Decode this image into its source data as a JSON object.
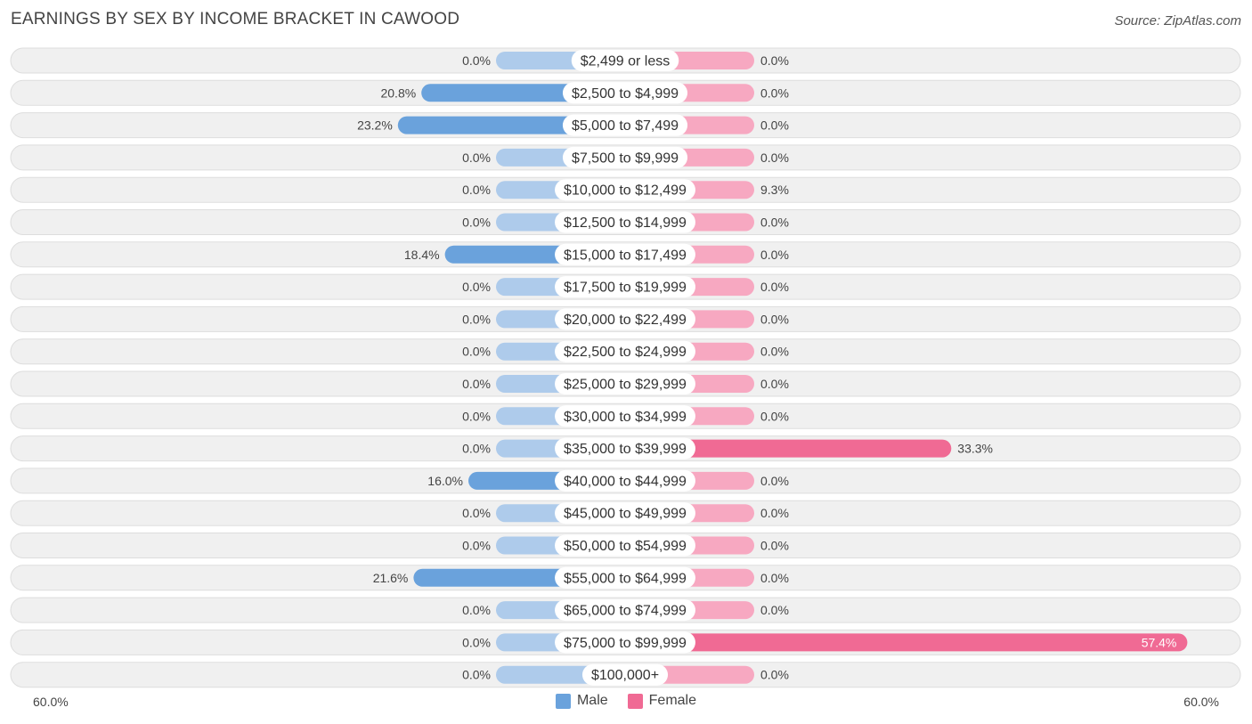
{
  "title": "EARNINGS BY SEX BY INCOME BRACKET IN CAWOOD",
  "source": "Source: ZipAtlas.com",
  "legend": {
    "male_label": "Male",
    "female_label": "Female"
  },
  "axis": {
    "left_label": "60.0%",
    "right_label": "60.0%"
  },
  "colors": {
    "male_strong": "#6aa2dc",
    "male_light": "#aecbeb",
    "female_strong": "#f06a94",
    "female_light": "#f7a8c1",
    "row_bg": "#f0f0f0",
    "row_border": "#dddddd"
  },
  "chart_data": {
    "type": "bar",
    "orientation": "horizontal-diverging",
    "title": "EARNINGS BY SEX BY INCOME BRACKET IN CAWOOD",
    "xlim": [
      -60,
      60
    ],
    "categories": [
      "$2,499 or less",
      "$2,500 to $4,999",
      "$5,000 to $7,499",
      "$7,500 to $9,999",
      "$10,000 to $12,499",
      "$12,500 to $14,999",
      "$15,000 to $17,499",
      "$17,500 to $19,999",
      "$20,000 to $22,499",
      "$22,500 to $24,999",
      "$25,000 to $29,999",
      "$30,000 to $34,999",
      "$35,000 to $39,999",
      "$40,000 to $44,999",
      "$45,000 to $49,999",
      "$50,000 to $54,999",
      "$55,000 to $64,999",
      "$65,000 to $74,999",
      "$75,000 to $99,999",
      "$100,000+"
    ],
    "series": [
      {
        "name": "Male",
        "values": [
          0.0,
          20.8,
          23.2,
          0.0,
          0.0,
          0.0,
          18.4,
          0.0,
          0.0,
          0.0,
          0.0,
          0.0,
          0.0,
          16.0,
          0.0,
          0.0,
          21.6,
          0.0,
          0.0,
          0.0
        ],
        "labels": [
          "0.0%",
          "20.8%",
          "23.2%",
          "0.0%",
          "0.0%",
          "0.0%",
          "18.4%",
          "0.0%",
          "0.0%",
          "0.0%",
          "0.0%",
          "0.0%",
          "0.0%",
          "16.0%",
          "0.0%",
          "0.0%",
          "21.6%",
          "0.0%",
          "0.0%",
          "0.0%"
        ]
      },
      {
        "name": "Female",
        "values": [
          0.0,
          0.0,
          0.0,
          0.0,
          9.3,
          0.0,
          0.0,
          0.0,
          0.0,
          0.0,
          0.0,
          0.0,
          33.3,
          0.0,
          0.0,
          0.0,
          0.0,
          0.0,
          57.4,
          0.0
        ],
        "labels": [
          "0.0%",
          "0.0%",
          "0.0%",
          "0.0%",
          "9.3%",
          "0.0%",
          "0.0%",
          "0.0%",
          "0.0%",
          "0.0%",
          "0.0%",
          "0.0%",
          "33.3%",
          "0.0%",
          "0.0%",
          "0.0%",
          "0.0%",
          "0.0%",
          "57.4%",
          "0.0%"
        ]
      }
    ]
  }
}
